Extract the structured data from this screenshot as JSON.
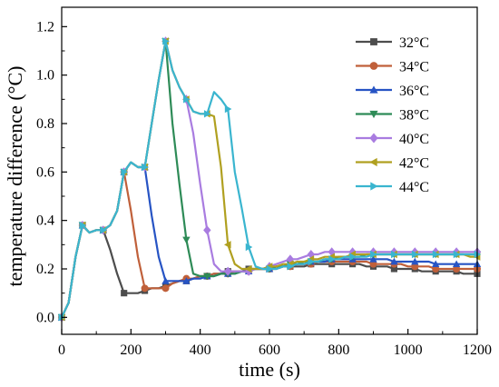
{
  "chart_data": {
    "type": "line",
    "title": "",
    "xlabel": "time (s)",
    "ylabel": "temperature difference (°C)",
    "xlim": [
      0,
      1200
    ],
    "ylim": [
      -0.07,
      1.28
    ],
    "xticks": [
      0,
      200,
      400,
      600,
      800,
      1000,
      1200
    ],
    "yticks": [
      0.0,
      0.2,
      0.4,
      0.6,
      0.8,
      1.0,
      1.2
    ],
    "x_tick_labels": [
      "0",
      "200",
      "400",
      "600",
      "800",
      "1000",
      "1200"
    ],
    "y_tick_labels": [
      "0.0",
      "0.2",
      "0.4",
      "0.6",
      "0.8",
      "1.0",
      "1.2"
    ],
    "grid": false,
    "legend": "top-right",
    "series": [
      {
        "name": "32°C",
        "color": "#4d4d4d",
        "marker": "square",
        "x": [
          0,
          20,
          40,
          60,
          80,
          100,
          120,
          140,
          160,
          180,
          200,
          220,
          240,
          260,
          280,
          300,
          320,
          340,
          360,
          380,
          400,
          420,
          440,
          460,
          480,
          500,
          520,
          540,
          560,
          580,
          600,
          620,
          640,
          660,
          680,
          700,
          720,
          740,
          760,
          780,
          800,
          820,
          840,
          860,
          880,
          900,
          920,
          940,
          960,
          980,
          1000,
          1020,
          1040,
          1060,
          1080,
          1100,
          1120,
          1140,
          1160,
          1180,
          1200
        ],
        "y": [
          0.0,
          0.06,
          0.25,
          0.38,
          0.35,
          0.36,
          0.36,
          0.28,
          0.18,
          0.1,
          0.1,
          0.1,
          0.11,
          0.12,
          0.12,
          0.13,
          0.14,
          0.15,
          0.15,
          0.16,
          0.17,
          0.17,
          0.18,
          0.18,
          0.19,
          0.19,
          0.19,
          0.2,
          0.2,
          0.2,
          0.2,
          0.2,
          0.21,
          0.21,
          0.21,
          0.21,
          0.22,
          0.22,
          0.22,
          0.22,
          0.22,
          0.22,
          0.22,
          0.22,
          0.21,
          0.21,
          0.21,
          0.21,
          0.2,
          0.2,
          0.2,
          0.2,
          0.19,
          0.19,
          0.19,
          0.19,
          0.19,
          0.19,
          0.18,
          0.18,
          0.18
        ]
      },
      {
        "name": "34°C",
        "color": "#c0603a",
        "marker": "circle",
        "x": [
          0,
          20,
          40,
          60,
          80,
          100,
          120,
          140,
          160,
          180,
          200,
          220,
          240,
          260,
          280,
          300,
          320,
          340,
          360,
          380,
          400,
          420,
          440,
          460,
          480,
          500,
          520,
          540,
          560,
          580,
          600,
          620,
          640,
          660,
          680,
          700,
          720,
          740,
          760,
          780,
          800,
          820,
          840,
          860,
          880,
          900,
          920,
          940,
          960,
          980,
          1000,
          1020,
          1040,
          1060,
          1080,
          1100,
          1120,
          1140,
          1160,
          1180,
          1200
        ],
        "y": [
          0.0,
          0.06,
          0.25,
          0.38,
          0.35,
          0.36,
          0.36,
          0.38,
          0.44,
          0.6,
          0.44,
          0.25,
          0.12,
          0.12,
          0.12,
          0.12,
          0.14,
          0.15,
          0.16,
          0.16,
          0.17,
          0.17,
          0.18,
          0.18,
          0.18,
          0.19,
          0.19,
          0.19,
          0.2,
          0.2,
          0.2,
          0.21,
          0.21,
          0.21,
          0.22,
          0.22,
          0.22,
          0.23,
          0.23,
          0.23,
          0.23,
          0.23,
          0.23,
          0.23,
          0.23,
          0.22,
          0.22,
          0.22,
          0.22,
          0.22,
          0.21,
          0.21,
          0.21,
          0.21,
          0.2,
          0.2,
          0.2,
          0.2,
          0.2,
          0.2,
          0.2
        ]
      },
      {
        "name": "36°C",
        "color": "#2754c4",
        "marker": "triangle-up",
        "x": [
          0,
          20,
          40,
          60,
          80,
          100,
          120,
          140,
          160,
          180,
          200,
          220,
          240,
          260,
          280,
          300,
          320,
          340,
          360,
          380,
          400,
          420,
          440,
          460,
          480,
          500,
          520,
          540,
          560,
          580,
          600,
          620,
          640,
          660,
          680,
          700,
          720,
          740,
          760,
          780,
          800,
          820,
          840,
          860,
          880,
          900,
          920,
          940,
          960,
          980,
          1000,
          1020,
          1040,
          1060,
          1080,
          1100,
          1120,
          1140,
          1160,
          1180,
          1200
        ],
        "y": [
          0.0,
          0.06,
          0.25,
          0.38,
          0.35,
          0.36,
          0.36,
          0.38,
          0.44,
          0.6,
          0.64,
          0.62,
          0.62,
          0.42,
          0.25,
          0.15,
          0.15,
          0.15,
          0.15,
          0.16,
          0.16,
          0.17,
          0.17,
          0.18,
          0.18,
          0.18,
          0.19,
          0.19,
          0.2,
          0.2,
          0.2,
          0.21,
          0.21,
          0.22,
          0.22,
          0.22,
          0.23,
          0.23,
          0.23,
          0.24,
          0.24,
          0.24,
          0.24,
          0.24,
          0.24,
          0.24,
          0.24,
          0.24,
          0.23,
          0.23,
          0.23,
          0.23,
          0.23,
          0.23,
          0.22,
          0.22,
          0.22,
          0.22,
          0.22,
          0.22,
          0.22
        ]
      },
      {
        "name": "38°C",
        "color": "#2e8b57",
        "marker": "triangle-down",
        "x": [
          0,
          20,
          40,
          60,
          80,
          100,
          120,
          140,
          160,
          180,
          200,
          220,
          240,
          260,
          280,
          300,
          320,
          340,
          360,
          380,
          400,
          420,
          440,
          460,
          480,
          500,
          520,
          540,
          560,
          580,
          600,
          620,
          640,
          660,
          680,
          700,
          720,
          740,
          760,
          780,
          800,
          820,
          840,
          860,
          880,
          900,
          920,
          940,
          960,
          980,
          1000,
          1020,
          1040,
          1060,
          1080,
          1100,
          1120,
          1140,
          1160,
          1180,
          1200
        ],
        "y": [
          0.0,
          0.06,
          0.25,
          0.38,
          0.35,
          0.36,
          0.36,
          0.38,
          0.44,
          0.6,
          0.64,
          0.62,
          0.62,
          0.8,
          0.98,
          1.14,
          0.8,
          0.55,
          0.32,
          0.18,
          0.17,
          0.17,
          0.17,
          0.18,
          0.18,
          0.18,
          0.19,
          0.19,
          0.2,
          0.2,
          0.2,
          0.21,
          0.21,
          0.22,
          0.22,
          0.23,
          0.23,
          0.23,
          0.24,
          0.24,
          0.25,
          0.25,
          0.25,
          0.25,
          0.26,
          0.26,
          0.26,
          0.26,
          0.26,
          0.26,
          0.26,
          0.26,
          0.26,
          0.26,
          0.26,
          0.26,
          0.26,
          0.26,
          0.26,
          0.26,
          0.26
        ]
      },
      {
        "name": "40°C",
        "color": "#a97ce0",
        "marker": "diamond",
        "x": [
          0,
          20,
          40,
          60,
          80,
          100,
          120,
          140,
          160,
          180,
          200,
          220,
          240,
          260,
          280,
          300,
          320,
          340,
          360,
          380,
          400,
          420,
          440,
          460,
          480,
          500,
          520,
          540,
          560,
          580,
          600,
          620,
          640,
          660,
          680,
          700,
          720,
          740,
          760,
          780,
          800,
          820,
          840,
          860,
          880,
          900,
          920,
          940,
          960,
          980,
          1000,
          1020,
          1040,
          1060,
          1080,
          1100,
          1120,
          1140,
          1160,
          1180,
          1200
        ],
        "y": [
          0.0,
          0.06,
          0.25,
          0.38,
          0.35,
          0.36,
          0.36,
          0.38,
          0.44,
          0.6,
          0.64,
          0.62,
          0.62,
          0.8,
          0.98,
          1.14,
          1.02,
          0.95,
          0.9,
          0.76,
          0.55,
          0.36,
          0.22,
          0.19,
          0.19,
          0.19,
          0.19,
          0.19,
          0.2,
          0.2,
          0.21,
          0.22,
          0.23,
          0.24,
          0.24,
          0.25,
          0.26,
          0.26,
          0.27,
          0.27,
          0.27,
          0.27,
          0.27,
          0.27,
          0.27,
          0.27,
          0.27,
          0.27,
          0.27,
          0.27,
          0.27,
          0.27,
          0.27,
          0.27,
          0.27,
          0.27,
          0.27,
          0.27,
          0.27,
          0.27,
          0.27
        ]
      },
      {
        "name": "42°C",
        "color": "#b0a020",
        "marker": "triangle-left",
        "x": [
          0,
          20,
          40,
          60,
          80,
          100,
          120,
          140,
          160,
          180,
          200,
          220,
          240,
          260,
          280,
          300,
          320,
          340,
          360,
          380,
          400,
          420,
          440,
          460,
          480,
          500,
          520,
          540,
          560,
          580,
          600,
          620,
          640,
          660,
          680,
          700,
          720,
          740,
          760,
          780,
          800,
          820,
          840,
          860,
          880,
          900,
          920,
          940,
          960,
          980,
          1000,
          1020,
          1040,
          1060,
          1080,
          1100,
          1120,
          1140,
          1160,
          1180,
          1200
        ],
        "y": [
          0.0,
          0.06,
          0.25,
          0.38,
          0.35,
          0.36,
          0.36,
          0.38,
          0.44,
          0.6,
          0.64,
          0.62,
          0.62,
          0.8,
          0.98,
          1.14,
          1.02,
          0.95,
          0.9,
          0.85,
          0.84,
          0.84,
          0.83,
          0.62,
          0.3,
          0.22,
          0.2,
          0.2,
          0.2,
          0.2,
          0.21,
          0.21,
          0.22,
          0.22,
          0.23,
          0.23,
          0.24,
          0.24,
          0.25,
          0.25,
          0.25,
          0.25,
          0.26,
          0.26,
          0.26,
          0.26,
          0.26,
          0.26,
          0.26,
          0.26,
          0.26,
          0.26,
          0.26,
          0.26,
          0.26,
          0.26,
          0.26,
          0.26,
          0.26,
          0.25,
          0.25
        ]
      },
      {
        "name": "44°C",
        "color": "#3ab5cf",
        "marker": "triangle-right",
        "x": [
          0,
          20,
          40,
          60,
          80,
          100,
          120,
          140,
          160,
          180,
          200,
          220,
          240,
          260,
          280,
          300,
          320,
          340,
          360,
          380,
          400,
          420,
          440,
          460,
          480,
          500,
          520,
          540,
          560,
          580,
          600,
          620,
          640,
          660,
          680,
          700,
          720,
          740,
          760,
          780,
          800,
          820,
          840,
          860,
          880,
          900,
          920,
          940,
          960,
          980,
          1000,
          1020,
          1040,
          1060,
          1080,
          1100,
          1120,
          1140,
          1160,
          1180,
          1200
        ],
        "y": [
          0.0,
          0.06,
          0.25,
          0.38,
          0.35,
          0.36,
          0.36,
          0.38,
          0.44,
          0.6,
          0.64,
          0.62,
          0.62,
          0.8,
          0.98,
          1.14,
          1.02,
          0.95,
          0.9,
          0.85,
          0.84,
          0.84,
          0.93,
          0.9,
          0.86,
          0.6,
          0.45,
          0.29,
          0.21,
          0.2,
          0.2,
          0.2,
          0.21,
          0.21,
          0.22,
          0.22,
          0.23,
          0.23,
          0.24,
          0.24,
          0.24,
          0.25,
          0.25,
          0.25,
          0.25,
          0.26,
          0.26,
          0.26,
          0.26,
          0.26,
          0.26,
          0.26,
          0.26,
          0.26,
          0.26,
          0.26,
          0.26,
          0.26,
          0.26,
          0.26,
          0.26
        ]
      }
    ]
  }
}
